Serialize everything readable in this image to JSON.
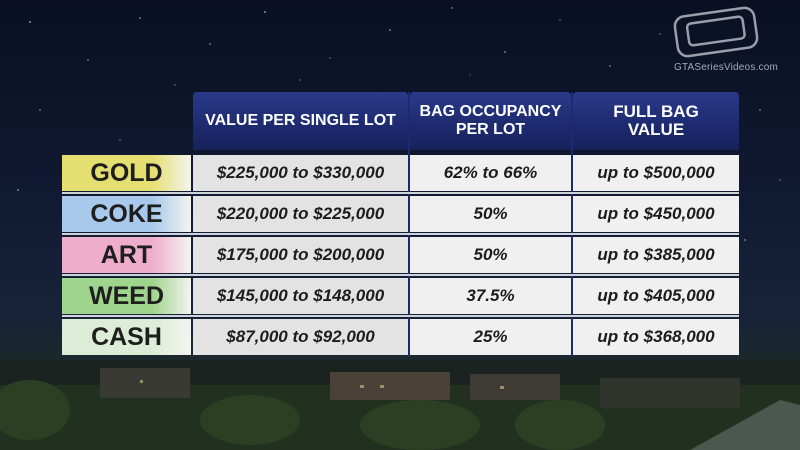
{
  "watermark": {
    "site": "GTASeriesVideos.com"
  },
  "headers": {
    "col1": "VALUE PER SINGLE LOT",
    "col2_line1": "BAG OCCUPANCY",
    "col2_line2": "PER LOT",
    "col3_line1": "FULL BAG",
    "col3_line2": "VALUE"
  },
  "rows": [
    {
      "name": "GOLD",
      "value": "$225,000 to $330,000",
      "occupancy": "62% to 66%",
      "full": "up to $500,000",
      "color": "#e5df72"
    },
    {
      "name": "COKE",
      "value": "$220,000 to $225,000",
      "occupancy": "50%",
      "full": "up to $450,000",
      "color": "#a9c9ec"
    },
    {
      "name": "ART",
      "value": "$175,000 to $200,000",
      "occupancy": "50%",
      "full": "up to $385,000",
      "color": "#eeaecb"
    },
    {
      "name": "WEED",
      "value": "$145,000 to $148,000",
      "occupancy": "37.5%",
      "full": "up to $405,000",
      "color": "#9fd48c"
    },
    {
      "name": "CASH",
      "value": "$87,000 to $92,000",
      "occupancy": "25%",
      "full": "up to $368,000",
      "color": "#dcecd6"
    }
  ]
}
